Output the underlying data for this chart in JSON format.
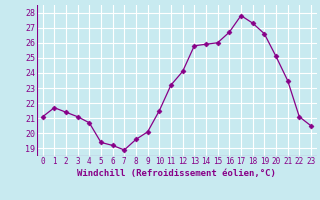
{
  "x": [
    0,
    1,
    2,
    3,
    4,
    5,
    6,
    7,
    8,
    9,
    10,
    11,
    12,
    13,
    14,
    15,
    16,
    17,
    18,
    19,
    20,
    21,
    22,
    23
  ],
  "y": [
    21.1,
    21.7,
    21.4,
    21.1,
    20.7,
    19.4,
    19.2,
    18.9,
    19.6,
    20.1,
    21.5,
    23.2,
    24.1,
    25.8,
    25.9,
    26.0,
    26.7,
    27.8,
    27.3,
    26.6,
    25.1,
    23.5,
    21.1,
    20.5
  ],
  "line_color": "#880088",
  "marker": "D",
  "marker_size": 2.5,
  "bg_color": "#c8eaf0",
  "grid_color": "#aaddcc",
  "xlabel": "Windchill (Refroidissement éolien,°C)",
  "xlabel_color": "#880088",
  "tick_color": "#880088",
  "ylim": [
    18.5,
    28.5
  ],
  "yticks": [
    19,
    20,
    21,
    22,
    23,
    24,
    25,
    26,
    27,
    28
  ],
  "xlim": [
    -0.5,
    23.5
  ],
  "xticks": [
    0,
    1,
    2,
    3,
    4,
    5,
    6,
    7,
    8,
    9,
    10,
    11,
    12,
    13,
    14,
    15,
    16,
    17,
    18,
    19,
    20,
    21,
    22,
    23
  ]
}
